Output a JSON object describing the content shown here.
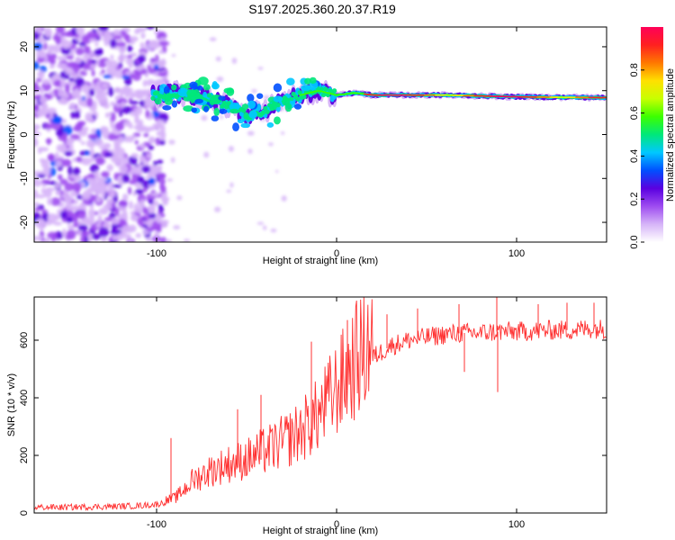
{
  "title": "S197.2025.360.20.37.R19",
  "chart_data": [
    {
      "type": "heatmap",
      "title": "S197.2025.360.20.37.R19",
      "xlabel": "Height of straight line (km)",
      "ylabel": "Frequency (Hz)",
      "xlim": [
        -168,
        150
      ],
      "ylim": [
        -24.5,
        24.5
      ],
      "xticks": [
        -100,
        0,
        100
      ],
      "yticks": [
        -20,
        -10,
        0,
        10,
        20
      ],
      "colorbar": {
        "label": "Normalized spectral amplitude",
        "range": [
          0.0,
          1.0
        ],
        "ticks": [
          0.0,
          0.2,
          0.4,
          0.6,
          0.8
        ],
        "colors": [
          "#ffffff",
          "#d6b4f8",
          "#9e4cf0",
          "#5a00e0",
          "#0050ff",
          "#00c8ff",
          "#00e87a",
          "#3cff00",
          "#c8ff00",
          "#ffe000",
          "#ff7800",
          "#ff2020",
          "#ff0058"
        ]
      },
      "ridge": [
        {
          "x": -100,
          "f": 9.0
        },
        {
          "x": -90,
          "f": 9.5
        },
        {
          "x": -80,
          "f": 9.0
        },
        {
          "x": -70,
          "f": 8.0
        },
        {
          "x": -60,
          "f": 6.5
        },
        {
          "x": -50,
          "f": 4.5
        },
        {
          "x": -40,
          "f": 5.5
        },
        {
          "x": -30,
          "f": 7.5
        },
        {
          "x": -20,
          "f": 9.0
        },
        {
          "x": -10,
          "f": 10.0
        },
        {
          "x": 0,
          "f": 9.0
        },
        {
          "x": 10,
          "f": 9.5
        },
        {
          "x": 20,
          "f": 9.0
        },
        {
          "x": 40,
          "f": 9.0
        },
        {
          "x": 60,
          "f": 9.0
        },
        {
          "x": 80,
          "f": 8.8
        },
        {
          "x": 100,
          "f": 8.6
        },
        {
          "x": 120,
          "f": 8.5
        },
        {
          "x": 150,
          "f": 8.4
        }
      ]
    },
    {
      "type": "line",
      "xlabel": "Height of straight line (km)",
      "ylabel": "SNR (10 * v/v)",
      "xlim": [
        -168,
        150
      ],
      "ylim": [
        0,
        750
      ],
      "xticks": [
        -100,
        0,
        100
      ],
      "yticks": [
        0,
        200,
        400,
        600
      ],
      "color": "#ff3030",
      "series": [
        {
          "name": "SNR",
          "x": [
            -168,
            -150,
            -130,
            -110,
            -100,
            -90,
            -85,
            -80,
            -70,
            -60,
            -50,
            -40,
            -30,
            -20,
            -10,
            0,
            10,
            20,
            30,
            40,
            50,
            60,
            70,
            80,
            90,
            100,
            110,
            120,
            130,
            140,
            150
          ],
          "y": [
            20,
            20,
            22,
            25,
            30,
            45,
            70,
            100,
            130,
            150,
            165,
            190,
            215,
            250,
            300,
            380,
            460,
            540,
            580,
            600,
            610,
            620,
            625,
            625,
            630,
            630,
            632,
            635,
            635,
            640,
            640
          ]
        }
      ],
      "spikes": [
        {
          "x": -92,
          "y": 260
        },
        {
          "x": -55,
          "y": 360
        },
        {
          "x": -42,
          "y": 410
        },
        {
          "x": -14,
          "y": 595
        },
        {
          "x": 6,
          "y": 670
        },
        {
          "x": 28,
          "y": 690
        },
        {
          "x": 45,
          "y": 710
        },
        {
          "x": 68,
          "y": 725
        },
        {
          "x": 89,
          "y": 750
        },
        {
          "x": 89.5,
          "y": 420
        },
        {
          "x": 71,
          "y": 490
        },
        {
          "x": 112,
          "y": 725
        },
        {
          "x": 128,
          "y": 730
        },
        {
          "x": 143,
          "y": 730
        }
      ]
    }
  ]
}
